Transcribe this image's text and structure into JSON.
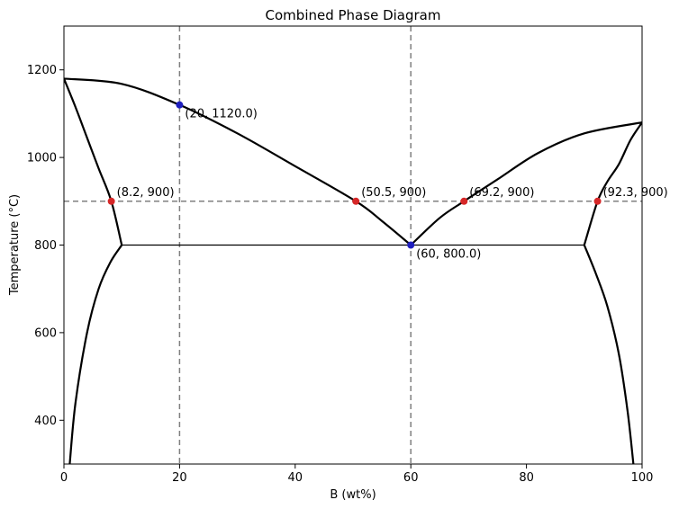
{
  "chart_data": {
    "type": "line",
    "title": "Combined Phase Diagram",
    "xlabel": "B (wt%)",
    "ylabel": "Temperature (°C)",
    "xlim": [
      0,
      100
    ],
    "ylim": [
      300,
      1300
    ],
    "xticks": [
      0,
      20,
      40,
      60,
      80,
      100
    ],
    "yticks": [
      400,
      600,
      800,
      1000,
      1200
    ],
    "grid": false,
    "colors": {
      "curve": "#000000",
      "guide": "#808080",
      "red_point": "#d62728",
      "blue_point": "#1f1fbf"
    },
    "curves": [
      {
        "name": "",
        "style": "solid",
        "points": [
          [
            0,
            1180
          ],
          [
            10,
            1168
          ],
          [
            20,
            1120
          ],
          [
            30,
            1055
          ],
          [
            40,
            980
          ],
          [
            50.5,
            900
          ],
          [
            55,
            855
          ],
          [
            60,
            800
          ]
        ]
      },
      {
        "name": "",
        "style": "solid",
        "points": [
          [
            60,
            800
          ],
          [
            65,
            862
          ],
          [
            69.2,
            900
          ],
          [
            75,
            950
          ],
          [
            82,
            1010
          ],
          [
            90,
            1055
          ],
          [
            100,
            1080
          ]
        ]
      },
      {
        "name": "",
        "style": "solid",
        "points": [
          [
            0,
            1180
          ],
          [
            2,
            1115
          ],
          [
            4,
            1045
          ],
          [
            6,
            975
          ],
          [
            8.2,
            900
          ],
          [
            10,
            800
          ]
        ]
      },
      {
        "name": "",
        "style": "solid",
        "points": [
          [
            10,
            800
          ],
          [
            8,
            760
          ],
          [
            6,
            700
          ],
          [
            4,
            600
          ],
          [
            2,
            440
          ],
          [
            1,
            300
          ]
        ]
      },
      {
        "name": "",
        "style": "solid",
        "points": [
          [
            100,
            1080
          ],
          [
            98,
            1040
          ],
          [
            96,
            985
          ],
          [
            94,
            945
          ],
          [
            92.3,
            900
          ],
          [
            90,
            800
          ]
        ]
      },
      {
        "name": "",
        "style": "solid",
        "points": [
          [
            90,
            800
          ],
          [
            92,
            735
          ],
          [
            94,
            660
          ],
          [
            96,
            550
          ],
          [
            97.5,
            420
          ],
          [
            98.5,
            300
          ]
        ]
      }
    ],
    "eutectic_line": {
      "x": [
        10,
        90
      ],
      "y": 800
    },
    "guides": {
      "vertical": [
        20,
        60
      ],
      "horizontal": [
        900
      ]
    },
    "points": [
      {
        "x": 8.2,
        "y": 900,
        "color": "red",
        "label": "(8.2, 900)"
      },
      {
        "x": 50.5,
        "y": 900,
        "color": "red",
        "label": "(50.5, 900)"
      },
      {
        "x": 69.2,
        "y": 900,
        "color": "red",
        "label": "(69.2, 900)"
      },
      {
        "x": 92.3,
        "y": 900,
        "color": "red",
        "label": "(92.3, 900)"
      },
      {
        "x": 20,
        "y": 1120.0,
        "color": "blue",
        "label": "(20, 1120.0)"
      },
      {
        "x": 60,
        "y": 800.0,
        "color": "blue",
        "label": "(60, 800.0)"
      }
    ]
  }
}
